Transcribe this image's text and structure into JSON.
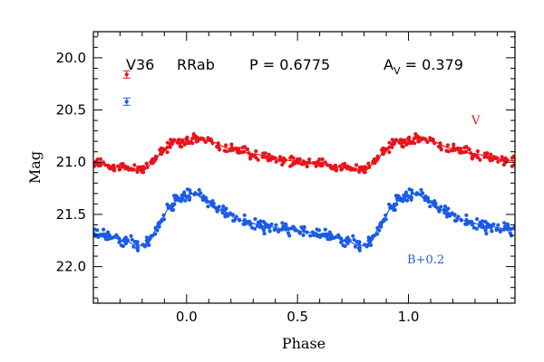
{
  "chart_data": {
    "type": "scatter",
    "title": "",
    "xlabel": "Phase",
    "ylabel": "Mag",
    "xlim": [
      -0.42,
      1.48
    ],
    "ylim": [
      22.35,
      19.75
    ],
    "y_inverted": true,
    "grid": false,
    "x_ticks": [
      0.0,
      0.5,
      1.0
    ],
    "x_tick_labels": [
      "0.0",
      "0.5",
      "1.0"
    ],
    "y_ticks": [
      20.0,
      20.5,
      21.0,
      21.5,
      22.0
    ],
    "y_tick_labels": [
      "20.0",
      "20.5",
      "21.0",
      "21.5",
      "22.0"
    ],
    "annotations": {
      "star": "V36",
      "type": "RRab",
      "period": "P = 0.6775",
      "amp_prefix": "A",
      "amp_sub": "V",
      "amp_value": " = 0.379"
    },
    "errorbars": [
      {
        "x": -0.27,
        "y": 20.16,
        "err": 0.035,
        "color": "#e8141c"
      },
      {
        "x": -0.27,
        "y": 20.42,
        "err": 0.035,
        "color": "#1a5ce6"
      }
    ],
    "series": [
      {
        "name": "V",
        "color": "#e8141c",
        "fit_phase": [
          0.0,
          0.05,
          0.1,
          0.2,
          0.3,
          0.4,
          0.5,
          0.6,
          0.7,
          0.75,
          0.8,
          0.82,
          0.85,
          0.9,
          0.95,
          1.0
        ],
        "fit_mag": [
          20.8,
          20.77,
          20.8,
          20.87,
          20.92,
          20.97,
          20.99,
          21.02,
          21.05,
          21.08,
          21.07,
          21.05,
          20.99,
          20.88,
          20.8,
          20.8
        ],
        "scatter": 0.045,
        "n_points": 230
      },
      {
        "name": "B+0.2",
        "color": "#1a5ce6",
        "fit_phase": [
          0.0,
          0.03,
          0.08,
          0.15,
          0.25,
          0.35,
          0.45,
          0.55,
          0.65,
          0.72,
          0.77,
          0.8,
          0.83,
          0.87,
          0.92,
          0.96,
          1.0
        ],
        "fit_mag": [
          21.32,
          21.3,
          21.35,
          21.46,
          21.56,
          21.61,
          21.64,
          21.67,
          21.71,
          21.75,
          21.79,
          21.8,
          21.76,
          21.62,
          21.45,
          21.36,
          21.32
        ],
        "scatter": 0.055,
        "n_points": 230
      }
    ]
  }
}
